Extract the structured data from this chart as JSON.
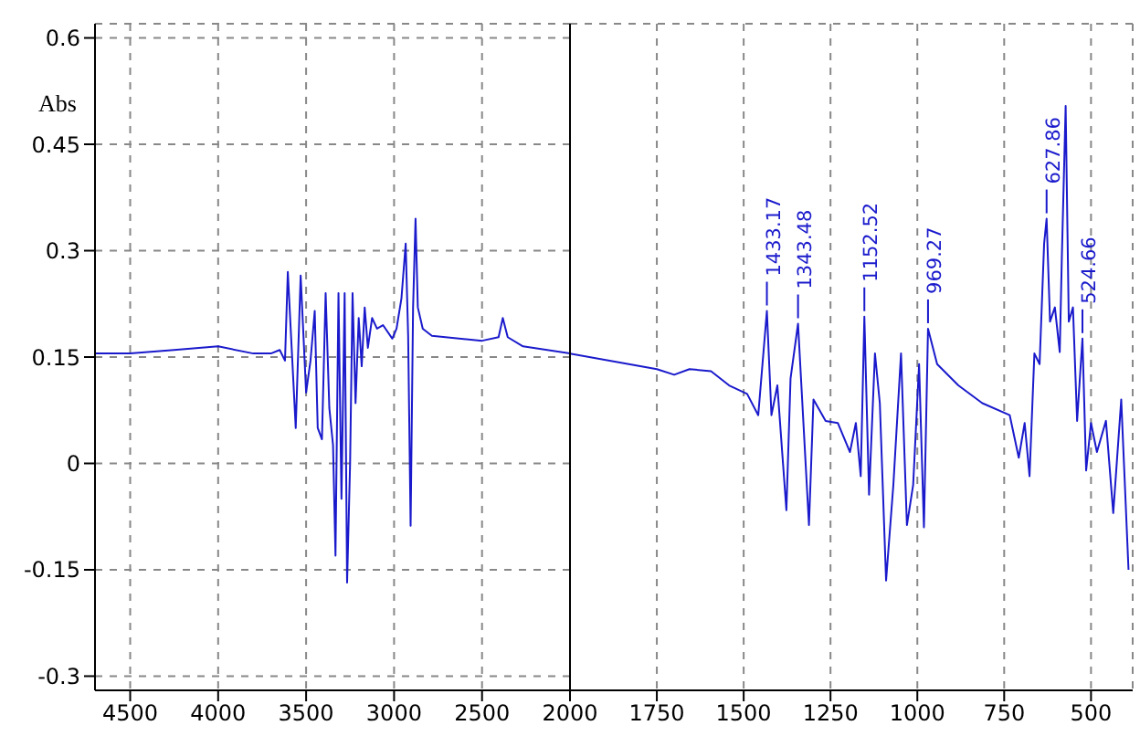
{
  "chart_data": [
    {
      "type": "line",
      "ylabel": "Abs",
      "xlim": [
        4700,
        2000
      ],
      "ylim": [
        -0.32,
        0.62
      ],
      "xticks": [
        4500,
        4000,
        3500,
        3000,
        2500
      ],
      "yticks": [
        -0.3,
        -0.15,
        0,
        0.15,
        0.3,
        0.45,
        0.6
      ],
      "grid": true,
      "marker": "none",
      "line_style": "solid",
      "series": [
        {
          "color": "#1a1acc",
          "x": [
            4700,
            4500,
            4250,
            4000,
            3800,
            3700,
            3650,
            3620,
            3604,
            3559,
            3531,
            3500,
            3475,
            3451,
            3434,
            3410,
            3389,
            3368,
            3347,
            3333,
            3316,
            3299,
            3281,
            3267,
            3250,
            3236,
            3219,
            3201,
            3184,
            3167,
            3149,
            3125,
            3097,
            3063,
            3010,
            2986,
            2958,
            2934,
            2920,
            2906,
            2892,
            2878,
            2865,
            2837,
            2785,
            2500,
            2406,
            2382,
            2354,
            2267,
            2000
          ],
          "values": [
            0.155,
            0.155,
            0.16,
            0.165,
            0.155,
            0.155,
            0.16,
            0.145,
            0.27,
            0.05,
            0.265,
            0.1,
            0.145,
            0.215,
            0.05,
            0.034,
            0.24,
            0.078,
            0.026,
            -0.13,
            0.24,
            -0.05,
            0.24,
            -0.168,
            0,
            0.24,
            0.085,
            0.205,
            0.137,
            0.22,
            0.163,
            0.205,
            0.19,
            0.195,
            0.176,
            0.19,
            0.233,
            0.31,
            0.18,
            -0.088,
            0.22,
            0.345,
            0.22,
            0.19,
            0.18,
            0.173,
            0.178,
            0.205,
            0.178,
            0.165,
            0.155
          ]
        }
      ]
    },
    {
      "type": "line",
      "xlim": [
        2000,
        380
      ],
      "ylim": [
        -0.32,
        0.62
      ],
      "xticks": [
        2000,
        1750,
        1500,
        1250,
        1000,
        750,
        500
      ],
      "yticks": [
        -0.3,
        -0.15,
        0,
        0.15,
        0.3,
        0.45,
        0.6
      ],
      "tick_labels": "x",
      "grid": true,
      "marker": "none",
      "line_style": "solid",
      "annotations": [
        {
          "text": "1433.17",
          "x": 1433.17,
          "y": 0.215
        },
        {
          "text": "1343.48",
          "x": 1343.48,
          "y": 0.197
        },
        {
          "text": "1152.52",
          "x": 1152.52,
          "y": 0.207
        },
        {
          "text": "969.27",
          "x": 969.27,
          "y": 0.19
        },
        {
          "text": "627.86",
          "x": 627.86,
          "y": 0.345
        },
        {
          "text": "524.66",
          "x": 524.66,
          "y": 0.176
        }
      ],
      "series": [
        {
          "color": "#1a1acc",
          "x": [
            2000,
            1750,
            1700,
            1656,
            1594,
            1542,
            1490,
            1458,
            1433.17,
            1420,
            1403,
            1377,
            1365,
            1343.48,
            1312,
            1299,
            1264,
            1229,
            1194,
            1177,
            1163,
            1152.52,
            1139,
            1122,
            1108,
            1090,
            1069,
            1047,
            1030,
            1012,
            995,
            981,
            969.27,
            943,
            882,
            813,
            734,
            708,
            691,
            677,
            663,
            648,
            635,
            627.86,
            618,
            604,
            590,
            584,
            573,
            564,
            552,
            540,
            524.66,
            514,
            500,
            483,
            457,
            436,
            413,
            392
          ],
          "values": [
            0.155,
            0.133,
            0.125,
            0.133,
            0.13,
            0.11,
            0.098,
            0.068,
            0.215,
            0.068,
            0.11,
            -0.066,
            0.12,
            0.197,
            -0.087,
            0.09,
            0.06,
            0.057,
            0.016,
            0.057,
            -0.018,
            0.207,
            -0.044,
            0.155,
            0.085,
            -0.165,
            -0.03,
            0.155,
            -0.087,
            -0.03,
            0.14,
            -0.09,
            0.19,
            0.14,
            0.11,
            0.085,
            0.068,
            0.008,
            0.057,
            -0.018,
            0.155,
            0.14,
            0.31,
            0.345,
            0.2,
            0.22,
            0.157,
            0.29,
            0.504,
            0.2,
            0.22,
            0.06,
            0.176,
            -0.01,
            0.057,
            0.016,
            0.06,
            -0.07,
            0.09,
            -0.15
          ]
        }
      ]
    }
  ]
}
